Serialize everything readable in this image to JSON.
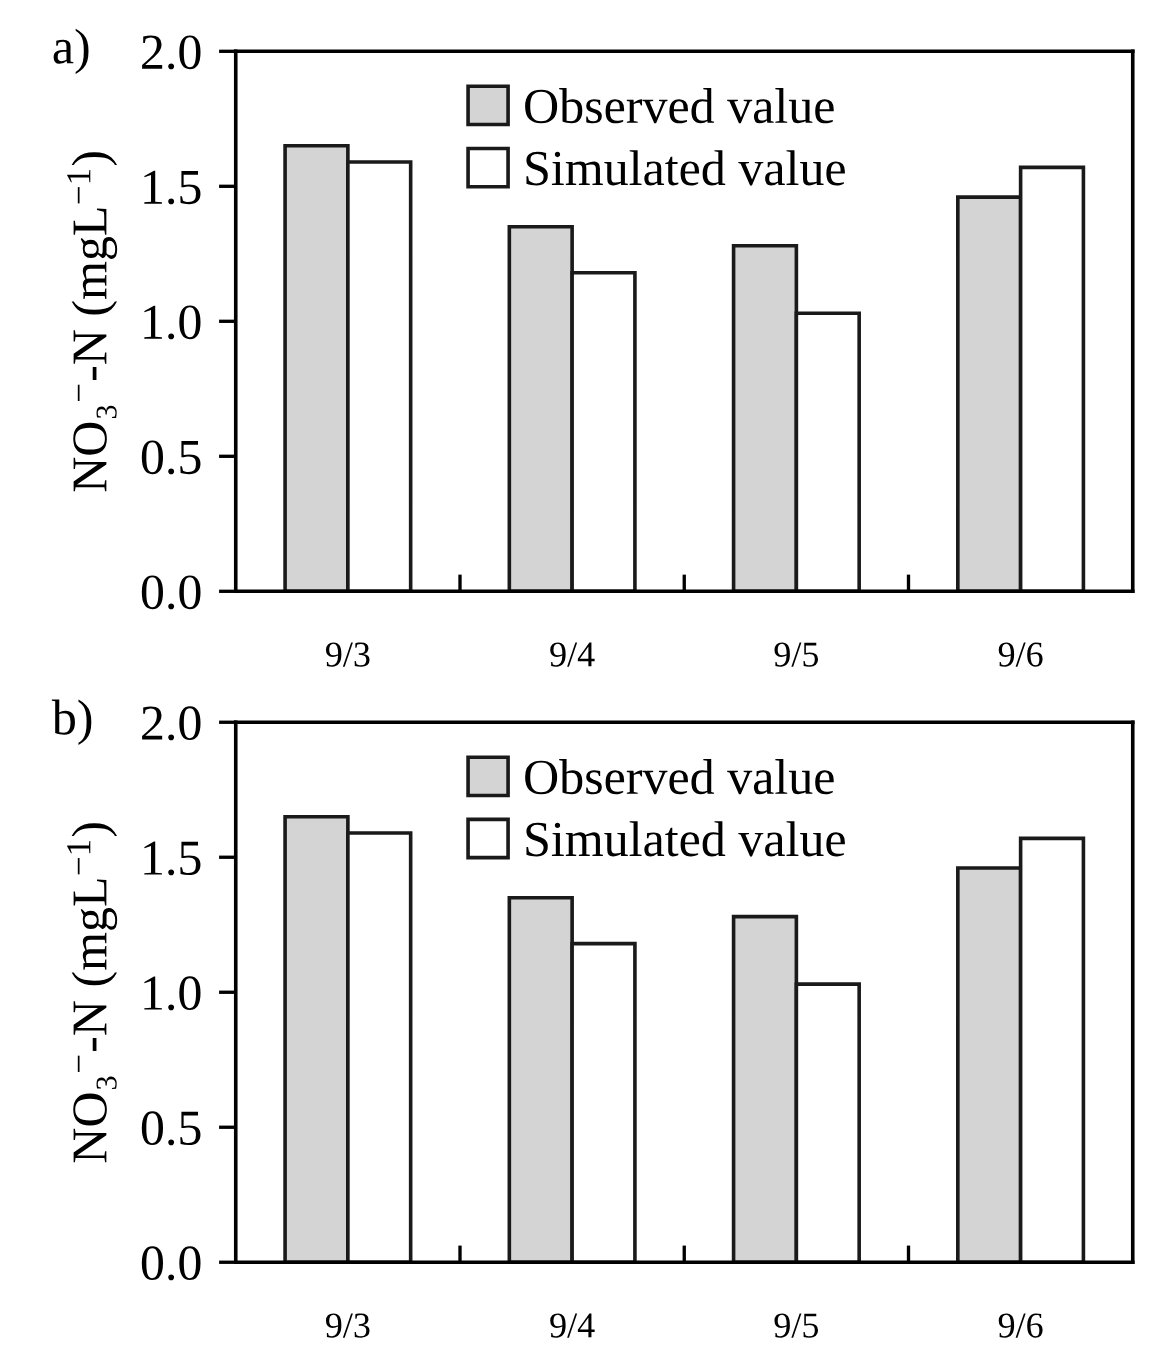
{
  "chart_data": [
    {
      "type": "bar",
      "title": "a)",
      "ylabel": "NO₃$^{−}$-N (mgL$^{−1}$)",
      "categories": [
        "9/3",
        "9/4",
        "9/5",
        "9/6"
      ],
      "series": [
        {
          "name": "Observed value",
          "color": "#d4d4d4",
          "values": [
            1.65,
            1.35,
            1.28,
            1.46
          ]
        },
        {
          "name": "Simulated value",
          "color": "#ffffff",
          "values": [
            1.59,
            1.18,
            1.03,
            1.57
          ]
        }
      ],
      "ylim": [
        0,
        2
      ],
      "yticks": [
        {
          "value": 0,
          "label": "0.0"
        },
        {
          "value": 0.5,
          "label": "0.5"
        },
        {
          "value": 1,
          "label": "1.0"
        },
        {
          "value": 1.5,
          "label": "1.5"
        },
        {
          "value": 2,
          "label": "2.0"
        }
      ],
      "legend": "top",
      "grid": false
    },
    {
      "type": "bar",
      "title": "b)",
      "ylabel": "NO₃$^{−}$-N (mgL$^{−1}$)",
      "categories": [
        "9/3",
        "9/4",
        "9/5",
        "9/6"
      ],
      "series": [
        {
          "name": "Observed value",
          "color": "#d4d4d4",
          "values": [
            1.65,
            1.35,
            1.28,
            1.46
          ]
        },
        {
          "name": "Simulated value",
          "color": "#ffffff",
          "values": [
            1.59,
            1.18,
            1.03,
            1.57
          ]
        }
      ],
      "ylim": [
        0,
        2
      ],
      "yticks": [
        {
          "value": 0,
          "label": "0.0"
        },
        {
          "value": 0.5,
          "label": "0.5"
        },
        {
          "value": 1,
          "label": "1.0"
        },
        {
          "value": 1.5,
          "label": "1.5"
        },
        {
          "value": 2,
          "label": "2.0"
        }
      ],
      "legend": "top",
      "grid": false
    }
  ]
}
